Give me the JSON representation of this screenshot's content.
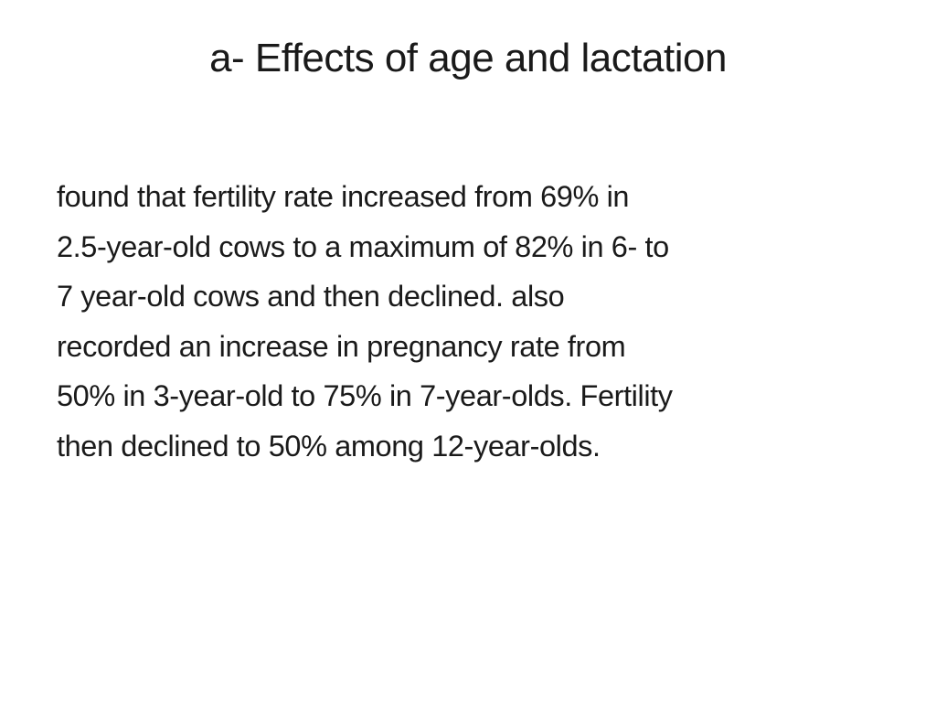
{
  "slide": {
    "title": "a- Effects of age and lactation",
    "body_lines": [
      "found that fertility rate increased from 69% in",
      "2.5-year-old cows to a maximum of 82% in 6- to",
      "7 year-old cows and then declined. also",
      "recorded an increase in pregnancy rate from",
      "50% in 3-year-old to 75% in 7-year-olds. Fertility",
      "then declined to 50% among 12-year-olds."
    ]
  }
}
